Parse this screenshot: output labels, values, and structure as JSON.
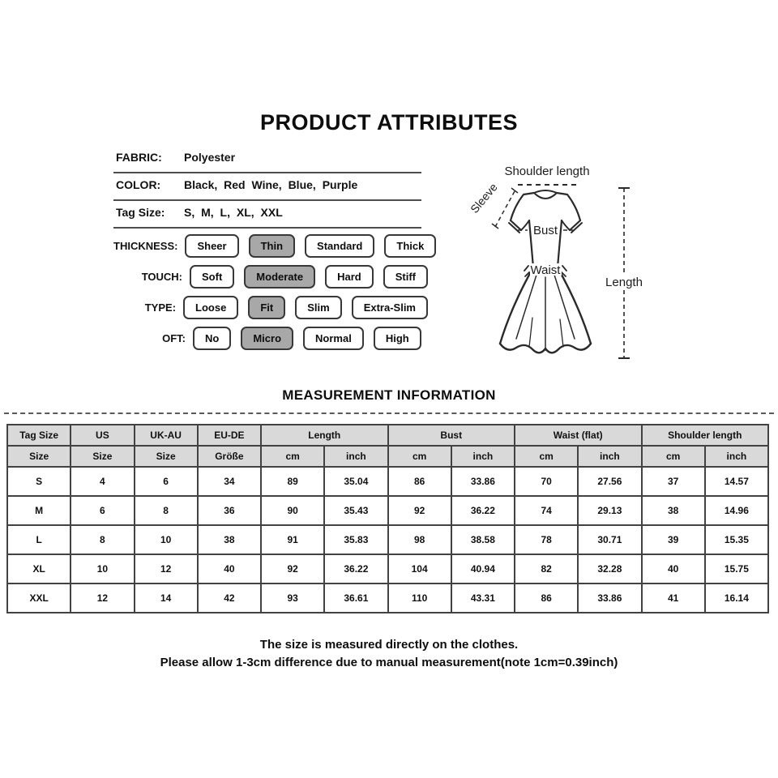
{
  "page": {
    "title": "PRODUCT ATTRIBUTES"
  },
  "attributes": [
    {
      "label": "FABRIC:",
      "value": "Polyester"
    },
    {
      "label": "COLOR:",
      "value": "Black, Red Wine, Blue, Purple"
    },
    {
      "label": "Tag Size:",
      "value": "S, M, L, XL, XXL"
    }
  ],
  "options": {
    "selected_bg": "#a8a8a8",
    "rows": [
      {
        "label": "THICKNESS:",
        "buttons": [
          {
            "label": "Sheer",
            "selected": false
          },
          {
            "label": "Thin",
            "selected": true
          },
          {
            "label": "Standard",
            "selected": false
          },
          {
            "label": "Thick",
            "selected": false
          }
        ]
      },
      {
        "label": "TOUCH:",
        "buttons": [
          {
            "label": "Soft",
            "selected": false
          },
          {
            "label": "Moderate",
            "selected": true
          },
          {
            "label": "Hard",
            "selected": false
          },
          {
            "label": "Stiff",
            "selected": false
          }
        ]
      },
      {
        "label": "TYPE:",
        "buttons": [
          {
            "label": "Loose",
            "selected": false
          },
          {
            "label": "Fit",
            "selected": true
          },
          {
            "label": "Slim",
            "selected": false
          },
          {
            "label": "Extra-Slim",
            "selected": false
          }
        ]
      },
      {
        "label": "OFT:",
        "buttons": [
          {
            "label": "No",
            "selected": false
          },
          {
            "label": "Micro",
            "selected": true
          },
          {
            "label": "Normal",
            "selected": false
          },
          {
            "label": "High",
            "selected": false
          }
        ]
      }
    ]
  },
  "diagram": {
    "labels": {
      "shoulder": "Shoulder length",
      "sleeve": "Sleeve",
      "bust": "Bust",
      "waist": "Waist",
      "length": "Length"
    }
  },
  "measurement": {
    "title": "MEASUREMENT INFORMATION",
    "table": {
      "groups": [
        {
          "label": "Tag Size",
          "sub": [
            "Size"
          ]
        },
        {
          "label": "US",
          "sub": [
            "Size"
          ]
        },
        {
          "label": "UK-AU",
          "sub": [
            "Size"
          ]
        },
        {
          "label": "EU-DE",
          "sub": [
            "Größe"
          ]
        },
        {
          "label": "Length",
          "sub": [
            "cm",
            "inch"
          ]
        },
        {
          "label": "Bust",
          "sub": [
            "cm",
            "inch"
          ]
        },
        {
          "label": "Waist  (flat)",
          "sub": [
            "cm",
            "inch"
          ]
        },
        {
          "label": "Shoulder length",
          "sub": [
            "cm",
            "inch"
          ]
        }
      ],
      "rows": [
        [
          "S",
          "4",
          "6",
          "34",
          "89",
          "35.04",
          "86",
          "33.86",
          "70",
          "27.56",
          "37",
          "14.57"
        ],
        [
          "M",
          "6",
          "8",
          "36",
          "90",
          "35.43",
          "92",
          "36.22",
          "74",
          "29.13",
          "38",
          "14.96"
        ],
        [
          "L",
          "8",
          "10",
          "38",
          "91",
          "35.83",
          "98",
          "38.58",
          "78",
          "30.71",
          "39",
          "15.35"
        ],
        [
          "XL",
          "10",
          "12",
          "40",
          "92",
          "36.22",
          "104",
          "40.94",
          "82",
          "32.28",
          "40",
          "15.75"
        ],
        [
          "XXL",
          "12",
          "14",
          "42",
          "93",
          "36.61",
          "110",
          "43.31",
          "86",
          "33.86",
          "41",
          "16.14"
        ]
      ]
    },
    "notes": [
      "The size is measured directly on the clothes.",
      "Please allow 1-3cm difference due to manual measurement(note 1cm=0.39inch)"
    ]
  }
}
